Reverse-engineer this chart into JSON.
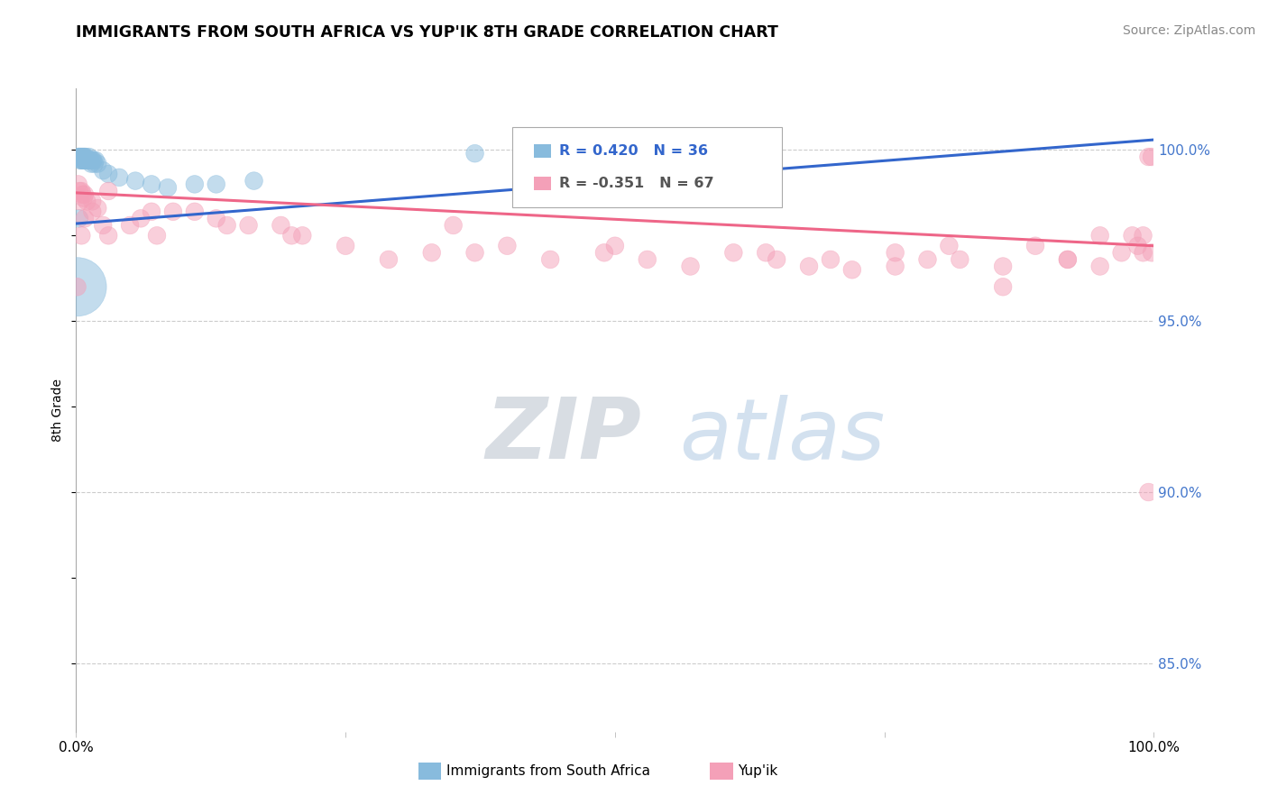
{
  "title": "IMMIGRANTS FROM SOUTH AFRICA VS YUP'IK 8TH GRADE CORRELATION CHART",
  "source": "Source: ZipAtlas.com",
  "ylabel": "8th Grade",
  "xlim": [
    0.0,
    1.0
  ],
  "ylim": [
    0.83,
    1.018
  ],
  "yticks": [
    0.85,
    0.9,
    0.95,
    1.0
  ],
  "ytick_labels": [
    "85.0%",
    "90.0%",
    "95.0%",
    "100.0%"
  ],
  "blue_R": 0.42,
  "blue_N": 36,
  "pink_R": -0.351,
  "pink_N": 67,
  "blue_color": "#88bbdd",
  "pink_color": "#f4a0b8",
  "blue_line_color": "#3366cc",
  "pink_line_color": "#ee6688",
  "legend_label_blue": "Immigrants from South Africa",
  "legend_label_pink": "Yup'ik",
  "watermark_zip": "ZIP",
  "watermark_atlas": "atlas",
  "blue_line_x0": 0.0,
  "blue_line_y0": 0.9785,
  "blue_line_x1": 1.0,
  "blue_line_y1": 1.003,
  "pink_line_x0": 0.0,
  "pink_line_y0": 0.9875,
  "pink_line_x1": 1.0,
  "pink_line_y1": 0.972,
  "blue_x": [
    0.002,
    0.003,
    0.004,
    0.004,
    0.005,
    0.005,
    0.006,
    0.006,
    0.007,
    0.007,
    0.008,
    0.008,
    0.009,
    0.009,
    0.01,
    0.011,
    0.012,
    0.013,
    0.014,
    0.015,
    0.016,
    0.017,
    0.018,
    0.02,
    0.025,
    0.03,
    0.04,
    0.055,
    0.07,
    0.085,
    0.11,
    0.13,
    0.165,
    0.37,
    0.001,
    0.003
  ],
  "blue_y": [
    0.998,
    0.998,
    0.998,
    0.997,
    0.998,
    0.997,
    0.998,
    0.997,
    0.998,
    0.997,
    0.998,
    0.997,
    0.998,
    0.997,
    0.997,
    0.997,
    0.998,
    0.997,
    0.996,
    0.997,
    0.997,
    0.996,
    0.997,
    0.996,
    0.994,
    0.993,
    0.992,
    0.991,
    0.99,
    0.989,
    0.99,
    0.99,
    0.991,
    0.999,
    0.96,
    0.98
  ],
  "blue_sizes": [
    200,
    200,
    200,
    200,
    200,
    200,
    200,
    200,
    200,
    200,
    200,
    200,
    200,
    200,
    200,
    200,
    200,
    200,
    200,
    200,
    200,
    200,
    200,
    200,
    200,
    200,
    200,
    200,
    200,
    200,
    200,
    200,
    200,
    200,
    2200,
    200
  ],
  "pink_x": [
    0.001,
    0.002,
    0.003,
    0.004,
    0.005,
    0.006,
    0.007,
    0.008,
    0.01,
    0.015,
    0.02,
    0.025,
    0.03,
    0.05,
    0.06,
    0.075,
    0.09,
    0.11,
    0.14,
    0.16,
    0.19,
    0.21,
    0.25,
    0.29,
    0.33,
    0.37,
    0.4,
    0.44,
    0.49,
    0.53,
    0.57,
    0.61,
    0.65,
    0.68,
    0.72,
    0.76,
    0.79,
    0.82,
    0.86,
    0.89,
    0.92,
    0.95,
    0.97,
    0.985,
    0.99,
    0.995,
    0.998,
    0.005,
    0.008,
    0.015,
    0.03,
    0.07,
    0.13,
    0.2,
    0.35,
    0.5,
    0.64,
    0.7,
    0.76,
    0.81,
    0.86,
    0.92,
    0.95,
    0.98,
    0.99,
    0.995,
    0.998
  ],
  "pink_y": [
    0.96,
    0.99,
    0.988,
    0.985,
    0.988,
    0.987,
    0.986,
    0.987,
    0.985,
    0.982,
    0.983,
    0.978,
    0.975,
    0.978,
    0.98,
    0.975,
    0.982,
    0.982,
    0.978,
    0.978,
    0.978,
    0.975,
    0.972,
    0.968,
    0.97,
    0.97,
    0.972,
    0.968,
    0.97,
    0.968,
    0.966,
    0.97,
    0.968,
    0.966,
    0.965,
    0.97,
    0.968,
    0.968,
    0.966,
    0.972,
    0.968,
    0.975,
    0.97,
    0.972,
    0.975,
    0.998,
    0.998,
    0.975,
    0.98,
    0.985,
    0.988,
    0.982,
    0.98,
    0.975,
    0.978,
    0.972,
    0.97,
    0.968,
    0.966,
    0.972,
    0.96,
    0.968,
    0.966,
    0.975,
    0.97,
    0.9,
    0.97
  ]
}
